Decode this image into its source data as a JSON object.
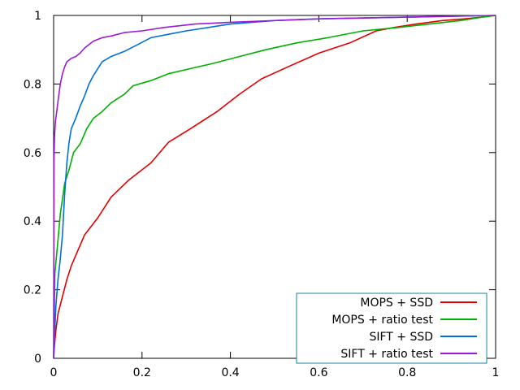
{
  "chart_data": {
    "type": "line",
    "title": "",
    "xlabel": "",
    "ylabel": "",
    "xlim": [
      0,
      1
    ],
    "ylim": [
      0,
      1
    ],
    "xticks": [
      "0",
      "0.2",
      "0.4",
      "0.6",
      "0.8",
      "1"
    ],
    "yticks": [
      "0",
      "0.2",
      "0.4",
      "0.6",
      "0.8",
      "1"
    ],
    "grid": false,
    "legend_position": "bottom-right",
    "series": [
      {
        "name": "MOPS + SSD",
        "color": "#e00000",
        "x": [
          0,
          0.002,
          0.005,
          0.01,
          0.02,
          0.03,
          0.04,
          0.05,
          0.07,
          0.1,
          0.13,
          0.17,
          0.22,
          0.26,
          0.31,
          0.37,
          0.42,
          0.47,
          0.53,
          0.6,
          0.67,
          0.73,
          0.77,
          0.82,
          0.88,
          0.93,
          0.97,
          1.0
        ],
        "y": [
          0,
          0.04,
          0.08,
          0.13,
          0.18,
          0.23,
          0.27,
          0.3,
          0.36,
          0.41,
          0.47,
          0.52,
          0.57,
          0.63,
          0.67,
          0.72,
          0.77,
          0.815,
          0.85,
          0.89,
          0.92,
          0.955,
          0.965,
          0.975,
          0.985,
          0.99,
          0.995,
          1.0
        ]
      },
      {
        "name": "MOPS + ratio test",
        "color": "#00b000",
        "x": [
          0,
          0.003,
          0.008,
          0.015,
          0.025,
          0.035,
          0.045,
          0.06,
          0.075,
          0.09,
          0.11,
          0.13,
          0.16,
          0.18,
          0.22,
          0.26,
          0.31,
          0.36,
          0.42,
          0.48,
          0.55,
          0.62,
          0.7,
          0.78,
          0.85,
          0.92,
          0.97,
          1.0
        ],
        "y": [
          0,
          0.25,
          0.32,
          0.42,
          0.51,
          0.55,
          0.6,
          0.625,
          0.67,
          0.7,
          0.72,
          0.745,
          0.77,
          0.795,
          0.81,
          0.83,
          0.845,
          0.86,
          0.88,
          0.9,
          0.92,
          0.935,
          0.955,
          0.965,
          0.975,
          0.985,
          0.995,
          1.0
        ]
      },
      {
        "name": "SIFT + SSD",
        "color": "#0070d8",
        "x": [
          0,
          0.005,
          0.01,
          0.015,
          0.02,
          0.025,
          0.03,
          0.035,
          0.04,
          0.05,
          0.06,
          0.07,
          0.08,
          0.09,
          0.1,
          0.11,
          0.13,
          0.16,
          0.19,
          0.22,
          0.26,
          0.3,
          0.35,
          0.4,
          0.5,
          0.6,
          0.8,
          1.0
        ],
        "y": [
          0,
          0.15,
          0.23,
          0.29,
          0.36,
          0.48,
          0.57,
          0.63,
          0.67,
          0.7,
          0.735,
          0.765,
          0.8,
          0.825,
          0.845,
          0.865,
          0.88,
          0.895,
          0.915,
          0.935,
          0.945,
          0.955,
          0.965,
          0.975,
          0.985,
          0.99,
          0.995,
          1.0
        ]
      },
      {
        "name": "SIFT + ratio test",
        "color": "#9a1ad8",
        "x": [
          0,
          0.001,
          0.002,
          0.004,
          0.006,
          0.008,
          0.01,
          0.015,
          0.02,
          0.025,
          0.03,
          0.04,
          0.05,
          0.06,
          0.07,
          0.08,
          0.09,
          0.11,
          0.13,
          0.16,
          0.2,
          0.25,
          0.32,
          0.4,
          0.5,
          0.6,
          0.8,
          1.0
        ],
        "y": [
          0,
          0.58,
          0.65,
          0.69,
          0.71,
          0.73,
          0.75,
          0.8,
          0.83,
          0.85,
          0.865,
          0.875,
          0.88,
          0.89,
          0.905,
          0.915,
          0.925,
          0.935,
          0.94,
          0.95,
          0.955,
          0.965,
          0.975,
          0.98,
          0.985,
          0.99,
          0.995,
          1.0
        ]
      }
    ]
  }
}
